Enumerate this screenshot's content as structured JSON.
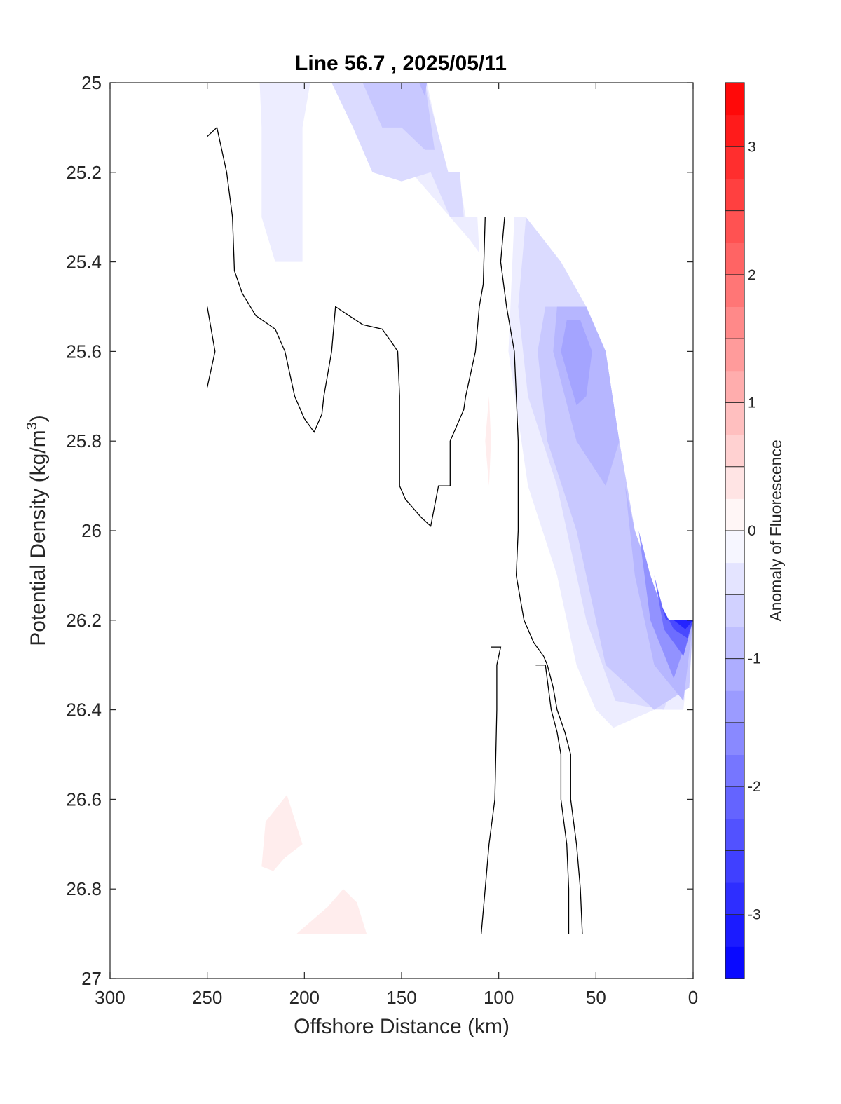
{
  "chart_data": {
    "type": "contourf",
    "title": "Line 56.7 , 2025/05/11",
    "xlabel": "Offshore Distance (km)",
    "ylabel_main": "Potential Density (kg/m",
    "ylabel_sup": "3",
    "ylabel_close": ")",
    "xlim": [
      300,
      0
    ],
    "x_reversed": true,
    "ylim": [
      25,
      27
    ],
    "y_reversed": true,
    "xticks": [
      300,
      250,
      200,
      150,
      100,
      50,
      0
    ],
    "xtick_labels": [
      "300",
      "250",
      "200",
      "150",
      "100",
      "50",
      "0"
    ],
    "yticks": [
      25,
      25.2,
      25.4,
      25.6,
      25.8,
      26,
      26.2,
      26.4,
      26.6,
      26.8,
      27
    ],
    "ytick_labels": [
      "25",
      "25.2",
      "25.4",
      "25.6",
      "25.8",
      "26",
      "26.2",
      "26.4",
      "26.6",
      "26.8",
      "27"
    ],
    "colorbar": {
      "label": "Anomaly of Fluorescence",
      "clim": [
        -3.5,
        3.5
      ],
      "ticks": [
        3,
        2,
        1,
        0,
        -1,
        -2,
        -3
      ],
      "tick_labels": [
        "3",
        "2",
        "1",
        "0",
        "-1",
        "-2",
        "-3"
      ],
      "step": 0.25,
      "neg_color": "#0000ff",
      "pos_color": "#ff0000",
      "zero_color": "#ffffff"
    },
    "filled_regions": [
      {
        "level": -0.25,
        "points": [
          [
            223,
            25
          ],
          [
            222,
            25.1
          ],
          [
            222,
            25.3
          ],
          [
            215,
            25.4
          ],
          [
            201,
            25.4
          ],
          [
            201,
            25.3
          ],
          [
            201,
            25.1
          ],
          [
            197,
            25
          ],
          [
            170,
            25
          ],
          [
            160,
            25.1
          ],
          [
            145,
            25.2
          ],
          [
            125,
            25.3
          ],
          [
            115,
            25.35
          ],
          [
            110,
            25.38
          ],
          [
            111,
            25.3
          ],
          [
            117,
            25.3
          ],
          [
            121,
            25.2
          ],
          [
            127,
            25.2
          ],
          [
            137,
            25
          ],
          [
            223,
            25
          ]
        ]
      },
      {
        "level": -0.5,
        "points": [
          [
            186,
            25
          ],
          [
            175,
            25.1
          ],
          [
            165,
            25.2
          ],
          [
            150,
            25.22
          ],
          [
            135,
            25.2
          ],
          [
            125,
            25.3
          ],
          [
            118,
            25.3
          ],
          [
            120,
            25.2
          ],
          [
            126,
            25.2
          ],
          [
            138,
            25
          ],
          [
            186,
            25
          ]
        ]
      },
      {
        "level": -0.75,
        "points": [
          [
            170,
            25
          ],
          [
            160,
            25.1
          ],
          [
            150,
            25.1
          ],
          [
            138,
            25.15
          ],
          [
            133,
            25.15
          ],
          [
            138,
            25
          ],
          [
            170,
            25
          ]
        ]
      },
      {
        "level": -1.0,
        "points": [
          [
            141,
            25
          ],
          [
            137,
            25
          ],
          [
            138,
            25.03
          ],
          [
            141,
            25
          ]
        ]
      },
      {
        "level": -0.25,
        "points": [
          [
            92,
            25.3
          ],
          [
            95,
            25.6
          ],
          [
            85,
            25.9
          ],
          [
            70,
            26.1
          ],
          [
            60,
            26.3
          ],
          [
            50,
            26.4
          ],
          [
            41,
            26.44
          ],
          [
            20,
            26.4
          ],
          [
            5,
            26.4
          ],
          [
            0,
            26.2
          ],
          [
            14,
            26.2
          ],
          [
            22,
            26.1
          ],
          [
            30,
            26
          ],
          [
            38,
            25.8
          ],
          [
            45,
            25.6
          ],
          [
            55,
            25.5
          ],
          [
            68,
            25.4
          ],
          [
            86,
            25.3
          ],
          [
            92,
            25.3
          ]
        ]
      },
      {
        "level": -0.5,
        "points": [
          [
            86,
            25.3
          ],
          [
            90,
            25.5
          ],
          [
            85,
            25.7
          ],
          [
            70,
            25.9
          ],
          [
            55,
            26.2
          ],
          [
            40,
            26.38
          ],
          [
            15,
            26.4
          ],
          [
            0,
            26.2
          ],
          [
            14,
            26.2
          ],
          [
            22,
            26.1
          ],
          [
            30,
            26
          ],
          [
            38,
            25.8
          ],
          [
            45,
            25.6
          ],
          [
            55,
            25.5
          ],
          [
            68,
            25.4
          ],
          [
            86,
            25.3
          ]
        ]
      },
      {
        "level": -0.75,
        "points": [
          [
            76,
            25.5
          ],
          [
            80,
            25.6
          ],
          [
            75,
            25.8
          ],
          [
            60,
            26.0
          ],
          [
            45,
            26.3
          ],
          [
            20,
            26.4
          ],
          [
            2,
            26.35
          ],
          [
            0,
            26.2
          ],
          [
            14,
            26.2
          ],
          [
            22,
            26.1
          ],
          [
            30,
            26
          ],
          [
            38,
            25.8
          ],
          [
            45,
            25.6
          ],
          [
            55,
            25.5
          ],
          [
            76,
            25.5
          ]
        ]
      },
      {
        "level": -1.0,
        "points": [
          [
            70,
            25.5
          ],
          [
            72,
            25.6
          ],
          [
            60,
            25.8
          ],
          [
            45,
            25.9
          ],
          [
            38,
            25.8
          ],
          [
            45,
            25.6
          ],
          [
            55,
            25.5
          ],
          [
            70,
            25.5
          ]
        ]
      },
      {
        "level": -1.25,
        "points": [
          [
            65,
            25.53
          ],
          [
            68,
            25.6
          ],
          [
            60,
            25.72
          ],
          [
            55,
            25.7
          ],
          [
            52,
            25.6
          ],
          [
            58,
            25.53
          ],
          [
            65,
            25.53
          ]
        ]
      },
      {
        "level": -1.0,
        "points": [
          [
            35,
            25.9
          ],
          [
            30,
            26.1
          ],
          [
            20,
            26.3
          ],
          [
            5,
            26.38
          ],
          [
            0,
            26.2
          ],
          [
            14,
            26.2
          ],
          [
            22,
            26.1
          ],
          [
            30,
            26
          ],
          [
            35,
            25.9
          ]
        ]
      },
      {
        "level": -1.5,
        "points": [
          [
            28,
            26.0
          ],
          [
            22,
            26.2
          ],
          [
            10,
            26.33
          ],
          [
            0,
            26.2
          ],
          [
            14,
            26.2
          ],
          [
            22,
            26.1
          ],
          [
            28,
            26.0
          ]
        ]
      },
      {
        "level": -2.0,
        "points": [
          [
            20,
            26.1
          ],
          [
            15,
            26.22
          ],
          [
            5,
            26.28
          ],
          [
            0,
            26.2
          ],
          [
            14,
            26.2
          ],
          [
            20,
            26.1
          ]
        ]
      },
      {
        "level": -2.5,
        "points": [
          [
            16,
            26.17
          ],
          [
            10,
            26.22
          ],
          [
            3,
            26.24
          ],
          [
            0,
            26.2
          ],
          [
            14,
            26.2
          ],
          [
            16,
            26.17
          ]
        ]
      },
      {
        "level": -3.0,
        "points": [
          [
            10,
            26.2
          ],
          [
            4,
            26.22
          ],
          [
            0,
            26.2
          ],
          [
            10,
            26.2
          ]
        ]
      },
      {
        "level": 0.25,
        "points": [
          [
            105,
            25.7
          ],
          [
            107,
            25.8
          ],
          [
            105,
            25.9
          ],
          [
            104,
            25.8
          ],
          [
            105,
            25.7
          ]
        ]
      },
      {
        "level": 0.25,
        "points": [
          [
            209,
            26.59
          ],
          [
            220,
            26.65
          ],
          [
            222,
            26.75
          ],
          [
            216,
            26.76
          ],
          [
            210,
            26.73
          ],
          [
            201,
            26.7
          ],
          [
            209,
            26.59
          ]
        ]
      },
      {
        "level": 0.25,
        "points": [
          [
            180,
            26.8
          ],
          [
            188,
            26.84
          ],
          [
            204,
            26.9
          ],
          [
            168,
            26.9
          ],
          [
            173,
            26.83
          ],
          [
            180,
            26.8
          ]
        ]
      }
    ],
    "zero_contours": [
      [
        [
          250,
          25.12
        ],
        [
          245,
          25.1
        ],
        [
          240,
          25.2
        ],
        [
          237,
          25.3
        ],
        [
          236,
          25.42
        ],
        [
          232,
          25.47
        ],
        [
          225,
          25.52
        ],
        [
          215,
          25.55
        ],
        [
          210,
          25.6
        ],
        [
          205,
          25.7
        ],
        [
          200,
          25.75
        ],
        [
          195,
          25.78
        ],
        [
          191,
          25.74
        ],
        [
          190,
          25.7
        ],
        [
          186,
          25.6
        ],
        [
          184,
          25.5
        ],
        [
          177,
          25.52
        ],
        [
          170,
          25.54
        ],
        [
          160,
          25.55
        ],
        [
          155,
          25.58
        ],
        [
          152,
          25.6
        ],
        [
          151,
          25.7
        ],
        [
          151,
          25.9
        ],
        [
          148,
          25.93
        ],
        [
          140,
          25.97
        ],
        [
          135,
          25.99
        ],
        [
          131,
          25.9
        ],
        [
          125,
          25.9
        ],
        [
          125,
          25.8
        ],
        [
          123,
          25.78
        ],
        [
          118,
          25.73
        ],
        [
          117,
          25.7
        ],
        [
          112,
          25.6
        ],
        [
          110,
          25.5
        ],
        [
          108,
          25.45
        ],
        [
          107,
          25.3
        ]
      ],
      [
        [
          250,
          25.5
        ],
        [
          246,
          25.6
        ],
        [
          250,
          25.68
        ]
      ],
      [
        [
          97,
          25.3
        ],
        [
          99,
          25.4
        ],
        [
          96,
          25.5
        ],
        [
          92,
          25.6
        ],
        [
          90,
          25.8
        ],
        [
          90,
          26.0
        ],
        [
          91,
          26.1
        ],
        [
          87,
          26.2
        ],
        [
          82,
          26.25
        ],
        [
          77,
          26.28
        ],
        [
          75,
          26.3
        ],
        [
          72,
          26.35
        ],
        [
          70,
          26.4
        ],
        [
          66,
          26.45
        ],
        [
          63,
          26.5
        ],
        [
          63,
          26.6
        ],
        [
          60,
          26.7
        ],
        [
          58,
          26.8
        ],
        [
          57,
          26.9
        ]
      ],
      [
        [
          81,
          26.3
        ],
        [
          76,
          26.3
        ],
        [
          73,
          26.4
        ],
        [
          70,
          26.45
        ],
        [
          68,
          26.5
        ],
        [
          68,
          26.6
        ],
        [
          65,
          26.7
        ],
        [
          64,
          26.8
        ],
        [
          64,
          26.9
        ]
      ],
      [
        [
          109,
          26.9
        ],
        [
          107,
          26.8
        ],
        [
          105,
          26.7
        ],
        [
          102,
          26.6
        ],
        [
          101,
          26.4
        ],
        [
          101,
          26.3
        ],
        [
          99,
          26.26
        ],
        [
          104,
          26.26
        ]
      ]
    ]
  }
}
